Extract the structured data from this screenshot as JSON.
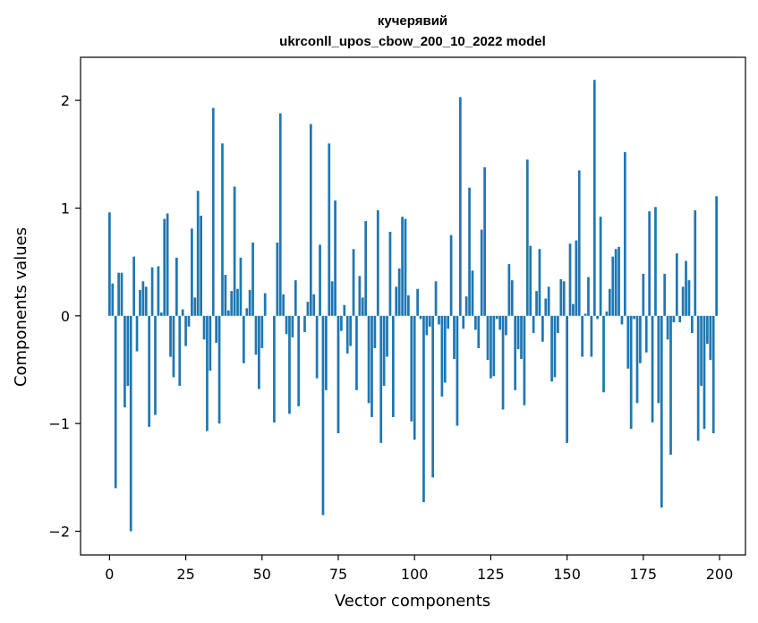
{
  "chart_data": {
    "type": "bar",
    "title": "кучерявий",
    "subtitle": "ukrconll_upos_cbow_200_10_2022 model",
    "xlabel": "Vector components",
    "ylabel": "Components values",
    "xlim": [
      -9.5,
      208.5
    ],
    "ylim": [
      -2.22,
      2.4
    ],
    "xticks": [
      0,
      25,
      50,
      75,
      100,
      125,
      150,
      175,
      200
    ],
    "xtick_labels": [
      "0",
      "25",
      "50",
      "75",
      "100",
      "125",
      "150",
      "175",
      "200"
    ],
    "yticks": [
      -2,
      -1,
      0,
      1,
      2
    ],
    "ytick_labels": [
      "−2",
      "−1",
      "0",
      "1",
      "2"
    ],
    "grid": false,
    "bar_color": "#1f77b4",
    "x": [
      0,
      1,
      2,
      3,
      4,
      5,
      6,
      7,
      8,
      9,
      10,
      11,
      12,
      13,
      14,
      15,
      16,
      17,
      18,
      19,
      20,
      21,
      22,
      23,
      24,
      25,
      26,
      27,
      28,
      29,
      30,
      31,
      32,
      33,
      34,
      35,
      36,
      37,
      38,
      39,
      40,
      41,
      42,
      43,
      44,
      45,
      46,
      47,
      48,
      49,
      50,
      51,
      52,
      53,
      54,
      55,
      56,
      57,
      58,
      59,
      60,
      61,
      62,
      63,
      64,
      65,
      66,
      67,
      68,
      69,
      70,
      71,
      72,
      73,
      74,
      75,
      76,
      77,
      78,
      79,
      80,
      81,
      82,
      83,
      84,
      85,
      86,
      87,
      88,
      89,
      90,
      91,
      92,
      93,
      94,
      95,
      96,
      97,
      98,
      99,
      100,
      101,
      102,
      103,
      104,
      105,
      106,
      107,
      108,
      109,
      110,
      111,
      112,
      113,
      114,
      115,
      116,
      117,
      118,
      119,
      120,
      121,
      122,
      123,
      124,
      125,
      126,
      127,
      128,
      129,
      130,
      131,
      132,
      133,
      134,
      135,
      136,
      137,
      138,
      139,
      140,
      141,
      142,
      143,
      144,
      145,
      146,
      147,
      148,
      149,
      150,
      151,
      152,
      153,
      154,
      155,
      156,
      157,
      158,
      159,
      160,
      161,
      162,
      163,
      164,
      165,
      166,
      167,
      168,
      169,
      170,
      171,
      172,
      173,
      174,
      175,
      176,
      177,
      178,
      179,
      180,
      181,
      182,
      183,
      184,
      185,
      186,
      187,
      188,
      189,
      190,
      191,
      192,
      193,
      194,
      195,
      196,
      197,
      198,
      199
    ],
    "values": [
      0.96,
      0.3,
      -1.6,
      0.4,
      0.4,
      -0.85,
      -0.65,
      -2.0,
      0.55,
      -0.33,
      0.24,
      0.32,
      0.27,
      -1.03,
      0.45,
      -0.92,
      0.46,
      0.03,
      0.9,
      0.95,
      -0.38,
      -0.57,
      0.54,
      -0.65,
      0.06,
      -0.28,
      -0.1,
      0.81,
      0.17,
      1.16,
      0.93,
      -0.22,
      -1.07,
      -0.51,
      1.93,
      -0.25,
      -1.0,
      1.6,
      0.38,
      0.05,
      0.23,
      1.2,
      0.25,
      0.54,
      -0.44,
      0.07,
      0.24,
      0.68,
      -0.36,
      -0.68,
      -0.3,
      0.21,
      0.0,
      0.0,
      -0.99,
      0.68,
      1.88,
      0.2,
      -0.17,
      -0.91,
      -0.2,
      0.33,
      -0.84,
      0.0,
      -0.15,
      0.13,
      1.78,
      0.2,
      -0.58,
      0.66,
      -1.85,
      -0.69,
      1.6,
      0.32,
      1.07,
      -1.09,
      -0.14,
      0.1,
      -0.35,
      -0.28,
      0.62,
      -0.69,
      0.37,
      0.17,
      0.88,
      -0.81,
      -0.94,
      -0.3,
      0.98,
      -1.18,
      -0.65,
      -0.38,
      0.78,
      -0.94,
      0.27,
      0.44,
      0.92,
      0.9,
      0.19,
      -0.98,
      -1.15,
      0.25,
      -0.03,
      -1.73,
      -0.18,
      -0.1,
      -1.5,
      0.32,
      -0.08,
      -0.75,
      -0.62,
      -0.12,
      0.75,
      -0.4,
      -1.02,
      2.03,
      -0.12,
      0.18,
      1.19,
      0.42,
      -0.13,
      -0.3,
      0.8,
      1.38,
      -0.41,
      -0.58,
      -0.56,
      -0.03,
      -0.13,
      -0.87,
      -0.18,
      0.48,
      0.33,
      -0.69,
      -0.31,
      -0.4,
      -0.83,
      1.45,
      0.65,
      -0.16,
      0.23,
      0.62,
      -0.24,
      0.16,
      0.27,
      -0.61,
      -0.57,
      -0.16,
      0.34,
      0.32,
      -1.18,
      0.67,
      0.11,
      0.7,
      1.35,
      -0.38,
      0.02,
      0.36,
      -0.38,
      2.19,
      -0.03,
      0.92,
      -0.71,
      0.04,
      0.25,
      0.55,
      0.62,
      0.64,
      -0.08,
      1.52,
      -0.49,
      -1.05,
      -0.03,
      -0.81,
      -0.44,
      0.39,
      -0.34,
      0.97,
      -0.99,
      1.01,
      -0.81,
      -1.78,
      0.39,
      -0.22,
      -1.29,
      -0.06,
      0.58,
      -0.06,
      0.27,
      0.51,
      0.33,
      -0.16,
      0.98,
      -1.16,
      -0.65,
      -1.05,
      -0.26,
      -0.41,
      -1.09,
      1.11
    ]
  }
}
